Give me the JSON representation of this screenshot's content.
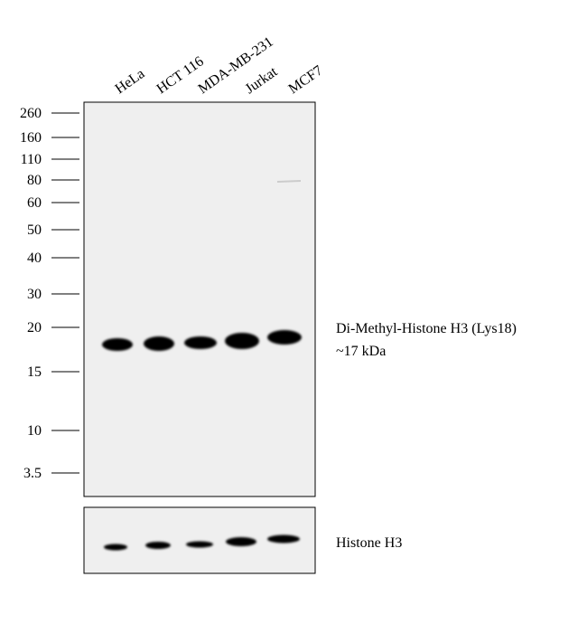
{
  "lanes": [
    "HeLa",
    "HCT 116",
    "MDA-MB-231",
    "Jurkat",
    "MCF7"
  ],
  "markers": [
    "260",
    "160",
    "110",
    "80",
    "60",
    "50",
    "40",
    "30",
    "20",
    "15",
    "10",
    "3.5"
  ],
  "annotations": {
    "target": "Di-Methyl-Histone  H3  (Lys18)",
    "size": "~17 kDa",
    "control": "Histone H3"
  }
}
